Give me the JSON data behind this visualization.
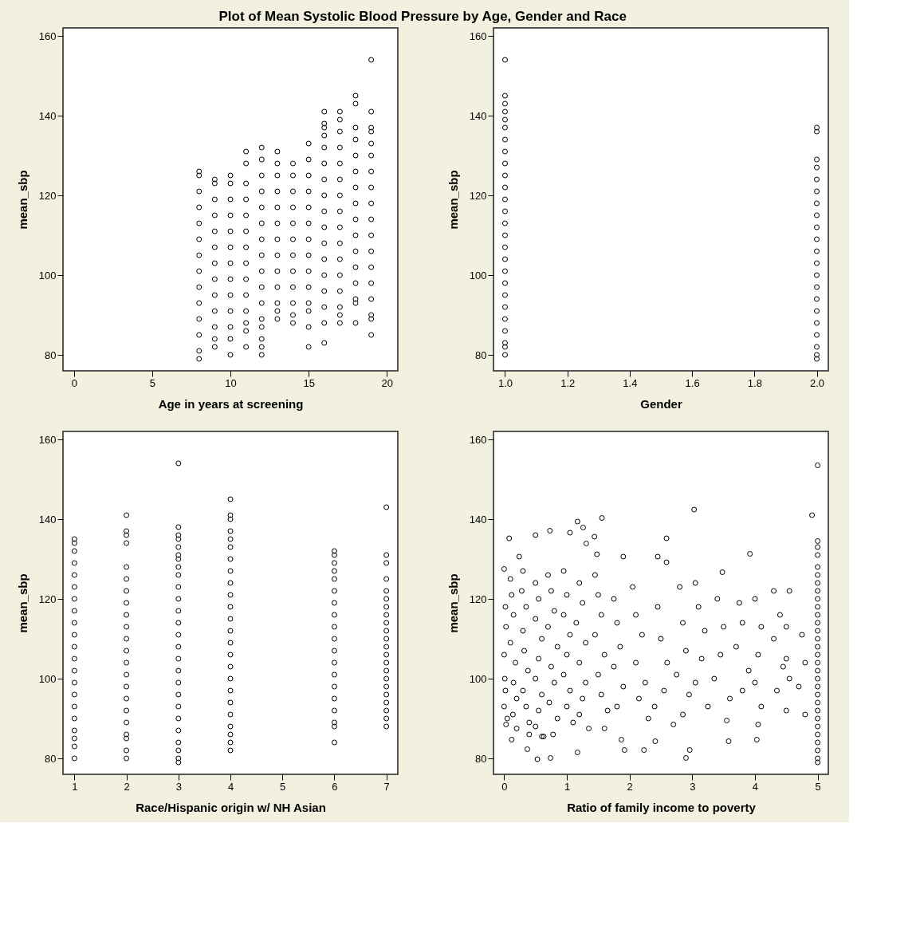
{
  "chart_data": [
    {
      "type": "scatter",
      "title": "Plot of Mean Systolic Blood Pressure by Age, Gender and Race",
      "xlabel": "Age in years at screening",
      "ylabel": "mean_sbp",
      "xlim": [
        -0.7,
        20.7
      ],
      "ylim": [
        76,
        162
      ],
      "xticks": [
        0,
        5,
        10,
        15,
        20
      ],
      "yticks": [
        80,
        100,
        120,
        140,
        160
      ],
      "marker": "circle",
      "series": [
        {
          "color": "#000000",
          "x": [
            8,
            8,
            8,
            8,
            8,
            8,
            8,
            8,
            8,
            8,
            8,
            8,
            8,
            8
          ],
          "values": [
            126,
            125,
            121,
            117,
            113,
            109,
            105,
            101,
            97,
            93,
            89,
            85,
            81,
            79
          ]
        },
        {
          "color": "#000000",
          "x": [
            9,
            9,
            9,
            9,
            9,
            9,
            9,
            9,
            9,
            9,
            9,
            9,
            9
          ],
          "values": [
            124,
            123,
            119,
            115,
            111,
            107,
            103,
            99,
            95,
            91,
            87,
            84,
            82
          ]
        },
        {
          "color": "#000000",
          "x": [
            10,
            10,
            10,
            10,
            10,
            10,
            10,
            10,
            10,
            10,
            10,
            10,
            10
          ],
          "values": [
            125,
            123,
            119,
            115,
            111,
            107,
            103,
            99,
            95,
            91,
            87,
            84,
            80
          ]
        },
        {
          "color": "#000000",
          "x": [
            11,
            11,
            11,
            11,
            11,
            11,
            11,
            11,
            11,
            11,
            11,
            11,
            11,
            11
          ],
          "values": [
            131,
            128,
            123,
            119,
            115,
            111,
            107,
            103,
            99,
            95,
            91,
            88,
            86,
            82
          ]
        },
        {
          "color": "#000000",
          "x": [
            12,
            12,
            12,
            12,
            12,
            12,
            12,
            12,
            12,
            12,
            12,
            12,
            12,
            12,
            12,
            12
          ],
          "values": [
            132,
            129,
            125,
            121,
            117,
            113,
            109,
            105,
            101,
            97,
            93,
            89,
            87,
            84,
            82,
            80
          ]
        },
        {
          "color": "#000000",
          "x": [
            13,
            13,
            13,
            13,
            13,
            13,
            13,
            13,
            13,
            13,
            13,
            13,
            13
          ],
          "values": [
            131,
            128,
            125,
            121,
            117,
            113,
            109,
            105,
            101,
            97,
            93,
            91,
            89
          ]
        },
        {
          "color": "#000000",
          "x": [
            14,
            14,
            14,
            14,
            14,
            14,
            14,
            14,
            14,
            14,
            14,
            14
          ],
          "values": [
            128,
            125,
            121,
            117,
            113,
            109,
            105,
            101,
            97,
            93,
            90,
            88
          ]
        },
        {
          "color": "#000000",
          "x": [
            15,
            15,
            15,
            15,
            15,
            15,
            15,
            15,
            15,
            15,
            15,
            15,
            15,
            15
          ],
          "values": [
            133,
            129,
            125,
            121,
            117,
            113,
            109,
            105,
            101,
            97,
            93,
            91,
            87,
            82
          ]
        },
        {
          "color": "#000000",
          "x": [
            16,
            16,
            16,
            16,
            16,
            16,
            16,
            16,
            16,
            16,
            16,
            16,
            16,
            16,
            16,
            16,
            16
          ],
          "values": [
            141,
            138,
            137,
            135,
            132,
            128,
            124,
            120,
            116,
            112,
            108,
            104,
            100,
            96,
            92,
            88,
            83
          ]
        },
        {
          "color": "#000000",
          "x": [
            17,
            17,
            17,
            17,
            17,
            17,
            17,
            17,
            17,
            17,
            17,
            17,
            17,
            17,
            17,
            17
          ],
          "values": [
            141,
            139,
            136,
            132,
            128,
            124,
            120,
            116,
            112,
            108,
            104,
            100,
            96,
            92,
            90,
            88
          ]
        },
        {
          "color": "#000000",
          "x": [
            18,
            18,
            18,
            18,
            18,
            18,
            18,
            18,
            18,
            18,
            18,
            18,
            18,
            18,
            18,
            18
          ],
          "values": [
            145,
            143,
            137,
            134,
            130,
            126,
            122,
            118,
            114,
            110,
            106,
            102,
            98,
            94,
            93,
            88
          ]
        },
        {
          "color": "#000000",
          "x": [
            19,
            19,
            19,
            19,
            19,
            19,
            19,
            19,
            19,
            19,
            19,
            19,
            19,
            19,
            19,
            19,
            19,
            19
          ],
          "values": [
            154,
            141,
            137,
            136,
            133,
            130,
            126,
            122,
            118,
            114,
            110,
            106,
            102,
            98,
            94,
            90,
            89,
            85
          ]
        }
      ]
    },
    {
      "type": "scatter",
      "xlabel": "Gender",
      "ylabel": "mean_sbp",
      "xlim": [
        0.963,
        2.037
      ],
      "ylim": [
        76,
        162
      ],
      "xticks": [
        {
          "value": 1,
          "label": "1.0"
        },
        1.2,
        1.4,
        1.6,
        1.8,
        {
          "value": 2,
          "label": "2.0"
        }
      ],
      "yticks": [
        80,
        100,
        120,
        140,
        160
      ],
      "marker": "circle",
      "series": [
        {
          "color": "#000000",
          "x": [
            1,
            1,
            1,
            1,
            1,
            1,
            1,
            1,
            1,
            1,
            1,
            1,
            1,
            1,
            1,
            1,
            1,
            1,
            1,
            1,
            1,
            1,
            1,
            1,
            1,
            1
          ],
          "values": [
            154,
            145,
            143,
            141,
            139,
            137,
            134,
            131,
            128,
            125,
            122,
            119,
            116,
            113,
            110,
            107,
            104,
            101,
            98,
            95,
            92,
            89,
            86,
            83,
            82,
            80
          ]
        },
        {
          "color": "#000000",
          "x": [
            2,
            2,
            2,
            2,
            2,
            2,
            2,
            2,
            2,
            2,
            2,
            2,
            2,
            2,
            2,
            2,
            2,
            2,
            2,
            2,
            2
          ],
          "values": [
            137,
            136,
            129,
            127,
            124,
            121,
            118,
            115,
            112,
            109,
            106,
            103,
            100,
            97,
            94,
            91,
            88,
            85,
            82,
            80,
            79
          ]
        }
      ]
    },
    {
      "type": "scatter",
      "xlabel": "Race/Hispanic origin w/ NH Asian",
      "ylabel": "mean_sbp",
      "xlim": [
        0.78,
        7.22
      ],
      "ylim": [
        76,
        162
      ],
      "xticks": [
        1,
        2,
        3,
        4,
        5,
        6,
        7
      ],
      "yticks": [
        80,
        100,
        120,
        140,
        160
      ],
      "marker": "circle",
      "series": [
        {
          "color": "#000000",
          "x": [
            1,
            1,
            1,
            1,
            1,
            1,
            1,
            1,
            1,
            1,
            1,
            1,
            1,
            1,
            1,
            1,
            1,
            1,
            1,
            1,
            1
          ],
          "values": [
            135,
            134,
            132,
            129,
            126,
            123,
            120,
            117,
            114,
            111,
            108,
            105,
            102,
            99,
            96,
            93,
            90,
            87,
            85,
            83,
            80
          ]
        },
        {
          "color": "#000000",
          "x": [
            2,
            2,
            2,
            2,
            2,
            2,
            2,
            2,
            2,
            2,
            2,
            2,
            2,
            2,
            2,
            2,
            2,
            2,
            2,
            2,
            2,
            2
          ],
          "values": [
            141,
            137,
            136,
            134,
            128,
            125,
            122,
            119,
            116,
            113,
            110,
            107,
            104,
            101,
            98,
            95,
            92,
            89,
            86,
            85,
            82,
            80
          ]
        },
        {
          "color": "#000000",
          "x": [
            3,
            3,
            3,
            3,
            3,
            3,
            3,
            3,
            3,
            3,
            3,
            3,
            3,
            3,
            3,
            3,
            3,
            3,
            3,
            3,
            3,
            3,
            3,
            3,
            3,
            3
          ],
          "values": [
            154,
            138,
            136,
            135,
            133,
            131,
            130,
            128,
            126,
            123,
            120,
            117,
            114,
            111,
            108,
            105,
            102,
            99,
            96,
            93,
            90,
            87,
            84,
            82,
            80,
            79
          ]
        },
        {
          "color": "#000000",
          "x": [
            4,
            4,
            4,
            4,
            4,
            4,
            4,
            4,
            4,
            4,
            4,
            4,
            4,
            4,
            4,
            4,
            4,
            4,
            4,
            4,
            4,
            4,
            4,
            4
          ],
          "values": [
            145,
            141,
            140,
            137,
            135,
            133,
            130,
            127,
            124,
            121,
            118,
            115,
            112,
            109,
            106,
            103,
            100,
            97,
            94,
            91,
            88,
            86,
            84,
            82
          ]
        },
        {
          "color": "#000000",
          "x": [
            6,
            6,
            6,
            6,
            6,
            6,
            6,
            6,
            6,
            6,
            6,
            6,
            6,
            6,
            6,
            6,
            6,
            6,
            6
          ],
          "values": [
            132,
            131,
            129,
            127,
            125,
            122,
            119,
            116,
            113,
            110,
            107,
            104,
            101,
            98,
            95,
            92,
            89,
            88,
            84
          ]
        },
        {
          "color": "#000000",
          "x": [
            7,
            7,
            7,
            7,
            7,
            7,
            7,
            7,
            7,
            7,
            7,
            7,
            7,
            7,
            7,
            7,
            7,
            7,
            7,
            7,
            7,
            7
          ],
          "values": [
            143,
            131,
            129,
            125,
            122,
            120,
            118,
            116,
            114,
            112,
            110,
            108,
            106,
            104,
            102,
            100,
            98,
            96,
            94,
            92,
            90,
            88
          ]
        }
      ]
    },
    {
      "type": "scatter",
      "xlabel": "Ratio of family income to poverty",
      "ylabel": "mean_sbp",
      "xlim": [
        -0.17,
        5.17
      ],
      "ylim": [
        76,
        162
      ],
      "xticks": [
        0,
        1,
        2,
        3,
        4,
        5
      ],
      "yticks": [
        80,
        100,
        120,
        140,
        160
      ],
      "marker": "circle",
      "series": [
        {
          "color": "#000000",
          "x": [
            4.91,
            3.03,
            1.56,
            1.17,
            1.26,
            0.08,
            0.5,
            0.73,
            1.05,
            1.44,
            2.59,
            1.31,
            0.24,
            1.48,
            1.9,
            2.45,
            2.59,
            3.92,
            3.48,
            0.53,
            0.74,
            2.9,
            1.17,
            2.96,
            0.37,
            1.92,
            2.23,
            3.58,
            4.03,
            2.41,
            1.87,
            0.12,
            0.63,
            0.0,
            0.02,
            0.03,
            0.0,
            0.01,
            0.02,
            0.0,
            0.05,
            0.03,
            0.1,
            0.12,
            0.15,
            0.1,
            0.18,
            0.15,
            0.2,
            0.14,
            0.2,
            0.3,
            0.28,
            0.35,
            0.3,
            0.32,
            0.38,
            0.3,
            0.35,
            0.4,
            0.4,
            0.5,
            0.55,
            0.5,
            0.6,
            0.55,
            0.5,
            0.6,
            0.55,
            0.5,
            0.6,
            0.7,
            0.75,
            0.8,
            0.7,
            0.85,
            0.75,
            0.8,
            0.72,
            0.85,
            0.78,
            0.95,
            1.0,
            0.95,
            1.05,
            1.0,
            0.95,
            1.05,
            1.0,
            1.1,
            1.2,
            1.25,
            1.15,
            1.3,
            1.2,
            1.3,
            1.25,
            1.2,
            1.35,
            1.45,
            1.5,
            1.55,
            1.45,
            1.6,
            1.5,
            1.55,
            1.65,
            1.6,
            1.75,
            1.8,
            1.85,
            1.75,
            1.9,
            1.8,
            2.05,
            2.1,
            2.2,
            2.1,
            2.25,
            2.15,
            2.3,
            2.45,
            2.5,
            2.6,
            2.55,
            2.4,
            2.7,
            2.8,
            2.85,
            2.9,
            2.75,
            2.95,
            2.85,
            3.05,
            3.1,
            3.2,
            3.15,
            3.05,
            3.25,
            3.4,
            3.5,
            3.45,
            3.35,
            3.6,
            3.55,
            3.75,
            3.8,
            3.7,
            3.9,
            3.8,
            4.0,
            4.1,
            4.05,
            4.0,
            4.1,
            4.05,
            4.3,
            4.4,
            4.3,
            4.45,
            4.35,
            4.55,
            4.5,
            4.5,
            4.55,
            4.5,
            4.75,
            4.8,
            4.7,
            4.8,
            5,
            5,
            5,
            5,
            5,
            5,
            5,
            5,
            5,
            5,
            5,
            5,
            5,
            5,
            5,
            5,
            5,
            5,
            5,
            5,
            5,
            5,
            5,
            5,
            5,
            5,
            5,
            5,
            5,
            5
          ],
          "values": [
            141,
            142.4,
            140.3,
            139.4,
            137.9,
            135.2,
            136,
            137.1,
            136.6,
            135.6,
            135.2,
            133.9,
            130.6,
            131.2,
            130.6,
            130.6,
            129.2,
            131.3,
            126.7,
            79.8,
            80.1,
            80.1,
            81.5,
            82.1,
            82.3,
            82.1,
            82.1,
            84.3,
            84.7,
            84.3,
            84.7,
            84.7,
            85.5,
            127.5,
            118,
            113,
            106,
            100,
            97,
            93,
            90,
            88.5,
            125,
            121,
            116,
            109,
            104,
            99,
            95,
            91,
            87.5,
            127,
            122,
            118,
            112,
            107,
            102,
            97,
            93,
            89,
            86,
            124,
            120,
            115,
            110,
            105,
            100,
            96,
            92,
            88,
            85.5,
            126,
            122,
            117,
            113,
            108,
            103,
            99,
            94,
            90,
            86,
            127,
            121,
            116,
            111,
            106,
            101,
            97,
            93,
            89,
            124,
            119,
            114,
            109,
            104,
            99,
            95,
            91,
            87.5,
            126,
            121,
            116,
            111,
            106,
            101,
            96,
            92,
            87.5,
            120,
            114,
            108,
            103,
            98,
            93,
            123,
            116,
            111,
            104,
            99,
            95,
            90,
            118,
            110,
            104,
            97,
            93,
            88.5,
            123,
            114,
            107,
            101,
            96,
            91,
            124,
            118,
            112,
            105,
            99,
            93,
            120,
            113,
            106,
            100,
            95,
            89.5,
            119,
            114,
            108,
            102,
            97,
            120,
            113,
            106,
            99,
            93,
            88.5,
            122,
            116,
            110,
            103,
            97,
            122,
            113,
            105,
            100,
            92,
            111,
            104,
            98,
            91,
            153.5,
            134.5,
            133,
            131,
            128,
            126,
            124,
            122,
            120,
            118,
            116,
            114,
            112,
            110,
            108,
            106,
            104,
            102,
            100,
            98,
            96,
            94,
            92,
            90,
            88,
            86,
            84,
            82,
            80,
            79
          ]
        }
      ]
    }
  ]
}
